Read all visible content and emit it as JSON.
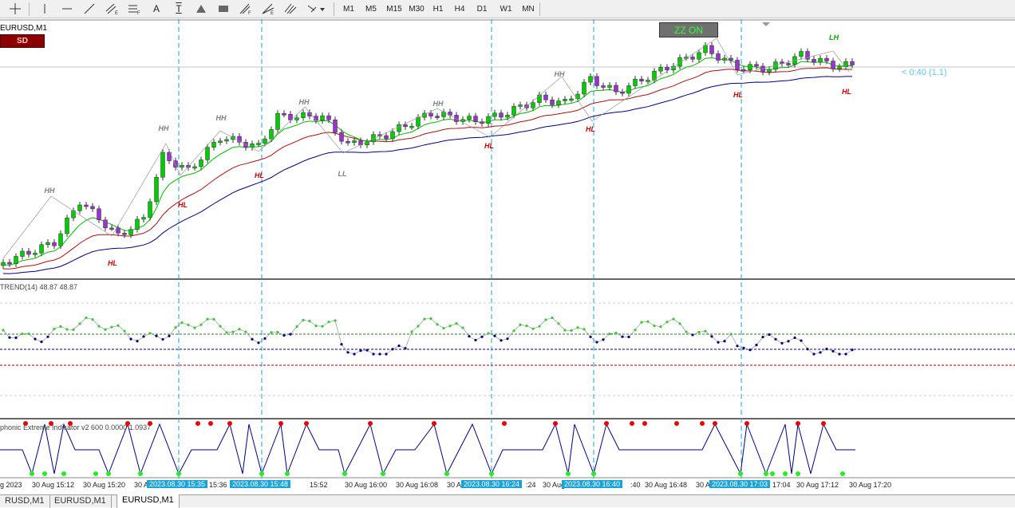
{
  "toolbar": {
    "timeframes": [
      "M1",
      "M5",
      "M15",
      "M30",
      "H1",
      "H4",
      "D1",
      "W1",
      "MN"
    ],
    "text_tool_label": "A",
    "textlabel_tool_label": "T"
  },
  "chart": {
    "symbol": "EURUSD,M1",
    "sd_button": "SD",
    "zz_button": "ZZ ON",
    "countdown": "< 0:40 (1.1)",
    "indicator1_label": "TREND(14) 48.87 48.87",
    "indicator2_label": "phonic Extreme Indicator v2 600 0.0000 1.0937",
    "swing_labels": [
      {
        "text": "HH",
        "kind": "high"
      },
      {
        "text": "HL",
        "kind": "low"
      },
      {
        "text": "HH",
        "kind": "high"
      },
      {
        "text": "HL",
        "kind": "low"
      },
      {
        "text": "HH",
        "kind": "high"
      },
      {
        "text": "HL",
        "kind": "low"
      },
      {
        "text": "HH",
        "kind": "high"
      },
      {
        "text": "LL",
        "kind": "low"
      },
      {
        "text": "HH",
        "kind": "high"
      },
      {
        "text": "HL",
        "kind": "low"
      },
      {
        "text": "HH",
        "kind": "high"
      },
      {
        "text": "HL",
        "kind": "low"
      },
      {
        "text": "HL",
        "kind": "low"
      },
      {
        "text": "LH",
        "kind": "high"
      },
      {
        "text": "HL",
        "kind": "low"
      }
    ],
    "time_labels": [
      "g 2023",
      "30 Aug 15:12",
      "30 Aug 15:20",
      "30 A",
      "15:36",
      "15:52",
      "30 Aug 16:00",
      "30 Aug 16:08",
      "30 Au",
      ":24",
      "30 Aug",
      ":40",
      "30 Aug 16:48",
      "30 A",
      "17:04",
      "30 Aug 17:12",
      "30 Aug 17:20"
    ],
    "highlighted_times": [
      "2023.08.30 15:35",
      "2023.08.30 15:48",
      "2023.08.30 16:24",
      "2023.08.30 16:40",
      "2023.08.30 17:03"
    ],
    "colors": {
      "bull": "#00cc00",
      "bear": "#9933cc",
      "ma_fast": "#00bb00",
      "ma_mid": "#aa1111",
      "ma_slow": "#000080",
      "vline": "#1aa3d6",
      "label_high": "#808080",
      "label_low": "#cc0000",
      "label_lh": "#00aa00"
    }
  },
  "tabs": [
    {
      "label": "RUSD,M1",
      "active": false
    },
    {
      "label": "EURUSD,M1",
      "active": false
    },
    {
      "label": "EURUSD,M1",
      "active": true
    }
  ]
}
